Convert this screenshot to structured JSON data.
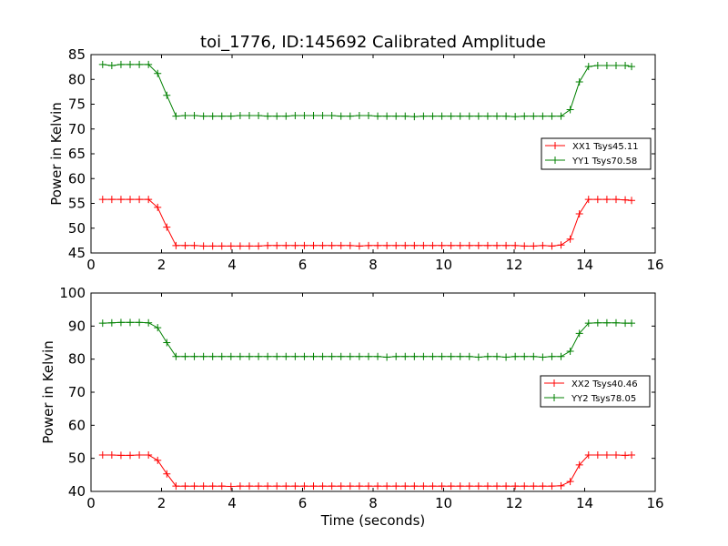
{
  "figure": {
    "title": "toi_1776, ID:145692 Calibrated Amplitude",
    "xlabel": "Time (seconds)"
  },
  "chart_data": [
    {
      "type": "line",
      "ylabel": "Power in Kelvin",
      "xlim": [
        0,
        16
      ],
      "ylim": [
        45,
        85
      ],
      "xticks": [
        0,
        2,
        4,
        6,
        8,
        10,
        12,
        14,
        16
      ],
      "yticks": [
        45,
        50,
        55,
        60,
        65,
        70,
        75,
        80,
        85
      ],
      "grid": false,
      "legend_position": "center-right",
      "x": [
        0.33,
        0.59,
        0.85,
        1.11,
        1.37,
        1.63,
        1.89,
        2.15,
        2.41,
        2.67,
        2.93,
        3.19,
        3.45,
        3.71,
        3.97,
        4.23,
        4.49,
        4.75,
        5.01,
        5.27,
        5.53,
        5.79,
        6.05,
        6.31,
        6.57,
        6.83,
        7.09,
        7.35,
        7.61,
        7.87,
        8.13,
        8.39,
        8.65,
        8.91,
        9.17,
        9.43,
        9.69,
        9.95,
        10.21,
        10.47,
        10.73,
        10.99,
        11.25,
        11.51,
        11.77,
        12.03,
        12.29,
        12.55,
        12.81,
        13.07,
        13.33,
        13.59,
        13.85,
        14.11,
        14.37,
        14.63,
        14.89,
        15.15,
        15.33
      ],
      "series": [
        {
          "name": "XX1 Tsys45.11",
          "color": "#ff0000",
          "values": [
            55.8,
            55.8,
            55.8,
            55.8,
            55.8,
            55.8,
            54.2,
            50.2,
            46.5,
            46.5,
            46.5,
            46.4,
            46.4,
            46.4,
            46.4,
            46.4,
            46.4,
            46.4,
            46.5,
            46.5,
            46.5,
            46.5,
            46.5,
            46.5,
            46.5,
            46.5,
            46.5,
            46.5,
            46.4,
            46.5,
            46.5,
            46.5,
            46.5,
            46.5,
            46.5,
            46.5,
            46.5,
            46.5,
            46.5,
            46.5,
            46.5,
            46.5,
            46.5,
            46.5,
            46.5,
            46.5,
            46.4,
            46.4,
            46.5,
            46.4,
            46.6,
            47.8,
            52.9,
            55.8,
            55.8,
            55.8,
            55.8,
            55.7,
            55.6
          ]
        },
        {
          "name": "YY1 Tsys70.58",
          "color": "#008000",
          "values": [
            83.0,
            82.8,
            83.0,
            83.0,
            83.0,
            83.0,
            81.2,
            76.8,
            72.6,
            72.7,
            72.7,
            72.6,
            72.6,
            72.6,
            72.6,
            72.7,
            72.7,
            72.7,
            72.6,
            72.6,
            72.6,
            72.7,
            72.7,
            72.7,
            72.7,
            72.7,
            72.6,
            72.6,
            72.7,
            72.7,
            72.6,
            72.6,
            72.6,
            72.6,
            72.5,
            72.6,
            72.6,
            72.6,
            72.6,
            72.6,
            72.6,
            72.6,
            72.6,
            72.6,
            72.6,
            72.5,
            72.6,
            72.6,
            72.6,
            72.6,
            72.6,
            73.9,
            79.5,
            82.6,
            82.8,
            82.8,
            82.8,
            82.8,
            82.6
          ]
        }
      ]
    },
    {
      "type": "line",
      "ylabel": "Power in Kelvin",
      "xlabel": "Time (seconds)",
      "xlim": [
        0,
        16
      ],
      "ylim": [
        40,
        100
      ],
      "xticks": [
        0,
        2,
        4,
        6,
        8,
        10,
        12,
        14,
        16
      ],
      "yticks": [
        40,
        50,
        60,
        70,
        80,
        90,
        100
      ],
      "grid": false,
      "legend_position": "center-right",
      "x": [
        0.33,
        0.59,
        0.85,
        1.11,
        1.37,
        1.63,
        1.89,
        2.15,
        2.41,
        2.67,
        2.93,
        3.19,
        3.45,
        3.71,
        3.97,
        4.23,
        4.49,
        4.75,
        5.01,
        5.27,
        5.53,
        5.79,
        6.05,
        6.31,
        6.57,
        6.83,
        7.09,
        7.35,
        7.61,
        7.87,
        8.13,
        8.39,
        8.65,
        8.91,
        9.17,
        9.43,
        9.69,
        9.95,
        10.21,
        10.47,
        10.73,
        10.99,
        11.25,
        11.51,
        11.77,
        12.03,
        12.29,
        12.55,
        12.81,
        13.07,
        13.33,
        13.59,
        13.85,
        14.11,
        14.37,
        14.63,
        14.89,
        15.15,
        15.33
      ],
      "series": [
        {
          "name": "XX2 Tsys40.46",
          "color": "#ff0000",
          "values": [
            51.0,
            51.0,
            50.9,
            50.9,
            51.0,
            51.0,
            49.4,
            45.3,
            41.6,
            41.6,
            41.6,
            41.6,
            41.6,
            41.6,
            41.5,
            41.6,
            41.6,
            41.6,
            41.6,
            41.6,
            41.6,
            41.6,
            41.6,
            41.6,
            41.6,
            41.6,
            41.6,
            41.6,
            41.6,
            41.6,
            41.6,
            41.6,
            41.6,
            41.6,
            41.6,
            41.6,
            41.6,
            41.6,
            41.6,
            41.6,
            41.6,
            41.6,
            41.6,
            41.6,
            41.6,
            41.6,
            41.6,
            41.6,
            41.6,
            41.6,
            41.7,
            43.0,
            48.0,
            51.0,
            51.0,
            51.0,
            51.0,
            50.9,
            51.0
          ]
        },
        {
          "name": "YY2 Tsys78.05",
          "color": "#008000",
          "values": [
            90.9,
            91.0,
            91.1,
            91.1,
            91.1,
            91.0,
            89.5,
            85.0,
            80.8,
            80.8,
            80.8,
            80.8,
            80.8,
            80.8,
            80.8,
            80.8,
            80.8,
            80.8,
            80.8,
            80.8,
            80.8,
            80.8,
            80.8,
            80.8,
            80.8,
            80.8,
            80.8,
            80.8,
            80.8,
            80.8,
            80.8,
            80.6,
            80.8,
            80.8,
            80.8,
            80.8,
            80.8,
            80.8,
            80.8,
            80.8,
            80.8,
            80.6,
            80.8,
            80.8,
            80.6,
            80.8,
            80.8,
            80.8,
            80.6,
            80.8,
            80.8,
            82.4,
            87.8,
            90.9,
            91.0,
            91.0,
            91.0,
            90.9,
            90.9
          ]
        }
      ]
    }
  ]
}
